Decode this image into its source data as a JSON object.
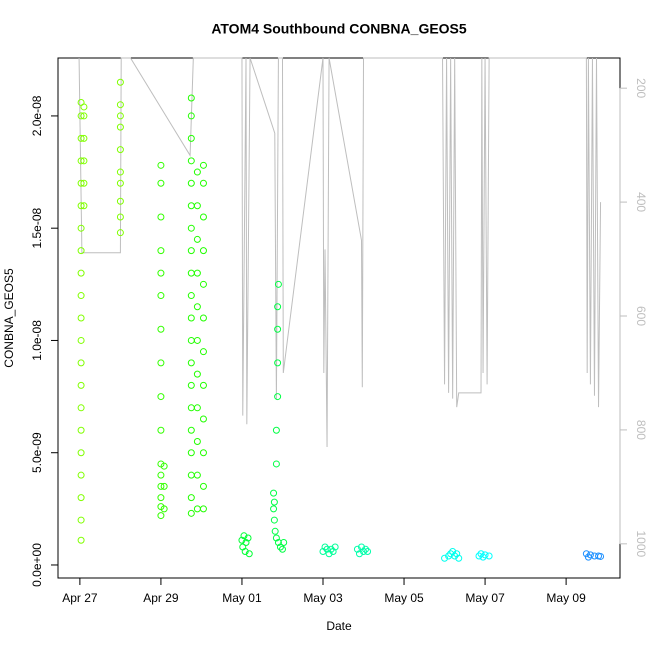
{
  "chart_data": {
    "type": "scatter",
    "title": "ATOM4 Southbound CONBNA_GEOS5",
    "xlabel": "Date",
    "ylabel": "CONBNA_GEOS5",
    "xlim": [
      -0.54,
      13.33
    ],
    "xticks": [
      {
        "value": 0,
        "label": "Apr 27"
      },
      {
        "value": 2,
        "label": "Apr 29"
      },
      {
        "value": 4,
        "label": "May 01"
      },
      {
        "value": 6,
        "label": "May 03"
      },
      {
        "value": 8,
        "label": "May 05"
      },
      {
        "value": 10,
        "label": "May 07"
      },
      {
        "value": 12,
        "label": "May 09"
      }
    ],
    "ylim": [
      -5.8e-10,
      2.258e-08
    ],
    "yticks": [
      {
        "value": 0,
        "label": "0.0e+00"
      },
      {
        "value": 5e-09,
        "label": "5.0e-09"
      },
      {
        "value": 1e-08,
        "label": "1.0e-08"
      },
      {
        "value": 1.5e-08,
        "label": "1.5e-08"
      },
      {
        "value": 2e-08,
        "label": "2.0e-08"
      }
    ],
    "y2lim": [
      1060,
      147
    ],
    "y2ticks": [
      200,
      400,
      600,
      800,
      1000
    ],
    "y2color": "#bebebe",
    "series": [
      {
        "type": "line",
        "axis": "y2",
        "color": "#bebebe",
        "x": [
          -0.02,
          0.05,
          1.0,
          1.02,
          1.25,
          2.72,
          2.8,
          3.1,
          4.0,
          4.02,
          4.1,
          4.12,
          4.2,
          4.81,
          4.85,
          4.9,
          5.0,
          5.02,
          6.0,
          6.02,
          6.05,
          6.1,
          6.15,
          6.95,
          6.97,
          7.0,
          8.95,
          9.0,
          9.05,
          9.1,
          9.15,
          9.2,
          9.25,
          9.3,
          9.35,
          9.9,
          9.92,
          9.95,
          10.0,
          10.05,
          10.1,
          12.5,
          12.52,
          12.55,
          12.6,
          12.65,
          12.7,
          12.75,
          12.8,
          12.85
        ],
        "values": [
          147,
          489,
          489,
          147,
          147,
          318,
          147,
          147,
          147,
          775,
          147,
          790,
          147,
          279,
          747,
          147,
          147,
          700,
          147,
          700,
          483,
          830,
          147,
          467,
          725,
          147,
          147,
          720,
          147,
          735,
          147,
          745,
          147,
          760,
          735,
          735,
          147,
          700,
          147,
          720,
          147,
          147,
          700,
          147,
          720,
          147,
          740,
          147,
          760,
          400
        ]
      },
      {
        "color": "#80ff00",
        "x": [
          0.03,
          0.03,
          0.03,
          0.03,
          0.03,
          0.03,
          0.03,
          0.03,
          0.03,
          0.03,
          0.03,
          0.03,
          0.03,
          0.03,
          0.03,
          0.03,
          0.03,
          0.03,
          0.03,
          0.03,
          0.03,
          0.1,
          0.1,
          0.1,
          0.1,
          0.1,
          0.1
        ],
        "values": [
          1.1e-09,
          2e-09,
          3e-09,
          4e-09,
          5e-09,
          6e-09,
          7e-09,
          8e-09,
          9e-09,
          1e-08,
          1.1e-08,
          1.2e-08,
          1.3e-08,
          1.4e-08,
          1.5e-08,
          1.6e-08,
          1.7e-08,
          1.8e-08,
          1.9e-08,
          2e-08,
          2.06e-08,
          1.6e-08,
          1.7e-08,
          1.8e-08,
          1.9e-08,
          2e-08,
          2.04e-08
        ]
      },
      {
        "color": "#80ff00",
        "x": [
          1.0,
          1.0,
          1.0,
          1.0,
          1.0,
          1.0,
          1.0,
          1.0,
          1.0,
          1.0
        ],
        "values": [
          1.48e-08,
          1.55e-08,
          1.62e-08,
          1.7e-08,
          1.75e-08,
          1.85e-08,
          1.95e-08,
          2e-08,
          2.05e-08,
          2.15e-08
        ]
      },
      {
        "color": "#33ff00",
        "x": [
          2.0,
          2.0,
          2.0,
          2.0,
          2.0,
          2.0,
          2.0,
          2.0,
          2.0,
          2.0,
          2.0,
          2.0,
          2.0,
          2.0,
          2.0,
          2.0,
          2.08,
          2.08,
          2.08
        ],
        "values": [
          2.2e-09,
          2.6e-09,
          3e-09,
          3.5e-09,
          4e-09,
          4.5e-09,
          6e-09,
          7.5e-09,
          9e-09,
          1.05e-08,
          1.2e-08,
          1.3e-08,
          1.4e-08,
          1.55e-08,
          1.7e-08,
          1.78e-08,
          2.5e-09,
          3.5e-09,
          4.4e-09
        ]
      },
      {
        "color": "#22ff00",
        "x": [
          2.75,
          2.75,
          2.75,
          2.75,
          2.75,
          2.75,
          2.75,
          2.75,
          2.75,
          2.75,
          2.75,
          2.75,
          2.75,
          2.75,
          2.75,
          2.75,
          2.75,
          2.75,
          2.75,
          2.75,
          2.9,
          2.9,
          2.9,
          2.9,
          2.9,
          2.9,
          2.9,
          2.9,
          2.9,
          2.9,
          2.9,
          3.05,
          3.05,
          3.05,
          3.05,
          3.05,
          3.05,
          3.05,
          3.05,
          3.05,
          3.05,
          3.05,
          3.05
        ],
        "values": [
          2.3e-09,
          3e-09,
          4e-09,
          5e-09,
          6e-09,
          7e-09,
          8e-09,
          9e-09,
          1e-08,
          1.1e-08,
          1.2e-08,
          1.3e-08,
          1.4e-08,
          1.5e-08,
          1.6e-08,
          1.7e-08,
          1.8e-08,
          1.9e-08,
          2e-08,
          2.08e-08,
          2.5e-09,
          4e-09,
          5.5e-09,
          7e-09,
          8.5e-09,
          1e-08,
          1.15e-08,
          1.3e-08,
          1.45e-08,
          1.6e-08,
          1.75e-08,
          2.5e-09,
          3.5e-09,
          5e-09,
          6.5e-09,
          8e-09,
          9.5e-09,
          1.1e-08,
          1.25e-08,
          1.4e-08,
          1.55e-08,
          1.7e-08,
          1.78e-08
        ]
      },
      {
        "color": "#00ff33",
        "x": [
          4.0,
          4.02,
          4.05,
          4.08,
          4.1,
          4.15,
          4.18
        ],
        "values": [
          1.1e-09,
          8e-10,
          1.3e-09,
          6e-10,
          1e-09,
          1.2e-09,
          5e-10
        ]
      },
      {
        "color": "#00ff44",
        "x": [
          4.78,
          4.78,
          4.8,
          4.82,
          4.85,
          4.9,
          4.95,
          5.0,
          5.03,
          4.85,
          4.85,
          4.88,
          4.88,
          4.88,
          4.88,
          4.9,
          4.8
        ],
        "values": [
          3.2e-09,
          2.5e-09,
          2e-09,
          1.5e-09,
          1.2e-09,
          1e-09,
          8e-10,
          7e-10,
          1e-09,
          4.5e-09,
          6e-09,
          7.5e-09,
          9e-09,
          1.05e-08,
          1.15e-08,
          1.25e-08,
          2.8e-09
        ]
      },
      {
        "color": "#00ff99",
        "x": [
          6.0,
          6.05,
          6.1,
          6.15,
          6.2,
          6.25,
          6.3
        ],
        "values": [
          6e-10,
          8e-10,
          7e-10,
          5e-10,
          7e-10,
          6e-10,
          8e-10
        ]
      },
      {
        "color": "#00ffaa",
        "x": [
          6.85,
          6.9,
          6.95,
          7.0,
          7.05,
          7.1
        ],
        "values": [
          7e-10,
          5e-10,
          8e-10,
          6e-10,
          7e-10,
          6e-10
        ]
      },
      {
        "color": "#00ffee",
        "x": [
          9.0,
          9.1,
          9.15,
          9.2,
          9.25,
          9.3,
          9.35
        ],
        "values": [
          3e-10,
          4e-10,
          5e-10,
          6e-10,
          4e-10,
          5e-10,
          3e-10
        ]
      },
      {
        "color": "#00ffff",
        "x": [
          9.85,
          9.9,
          9.95,
          10.0,
          10.1
        ],
        "values": [
          4e-10,
          5e-10,
          3.5e-10,
          4.5e-10,
          4e-10
        ]
      },
      {
        "color": "#1e90ff",
        "x": [
          12.5,
          12.55,
          12.6,
          12.7,
          12.8,
          12.85
        ],
        "values": [
          5e-10,
          3.5e-10,
          4.5e-10,
          4e-10,
          4e-10,
          3.8e-10
        ]
      }
    ]
  }
}
